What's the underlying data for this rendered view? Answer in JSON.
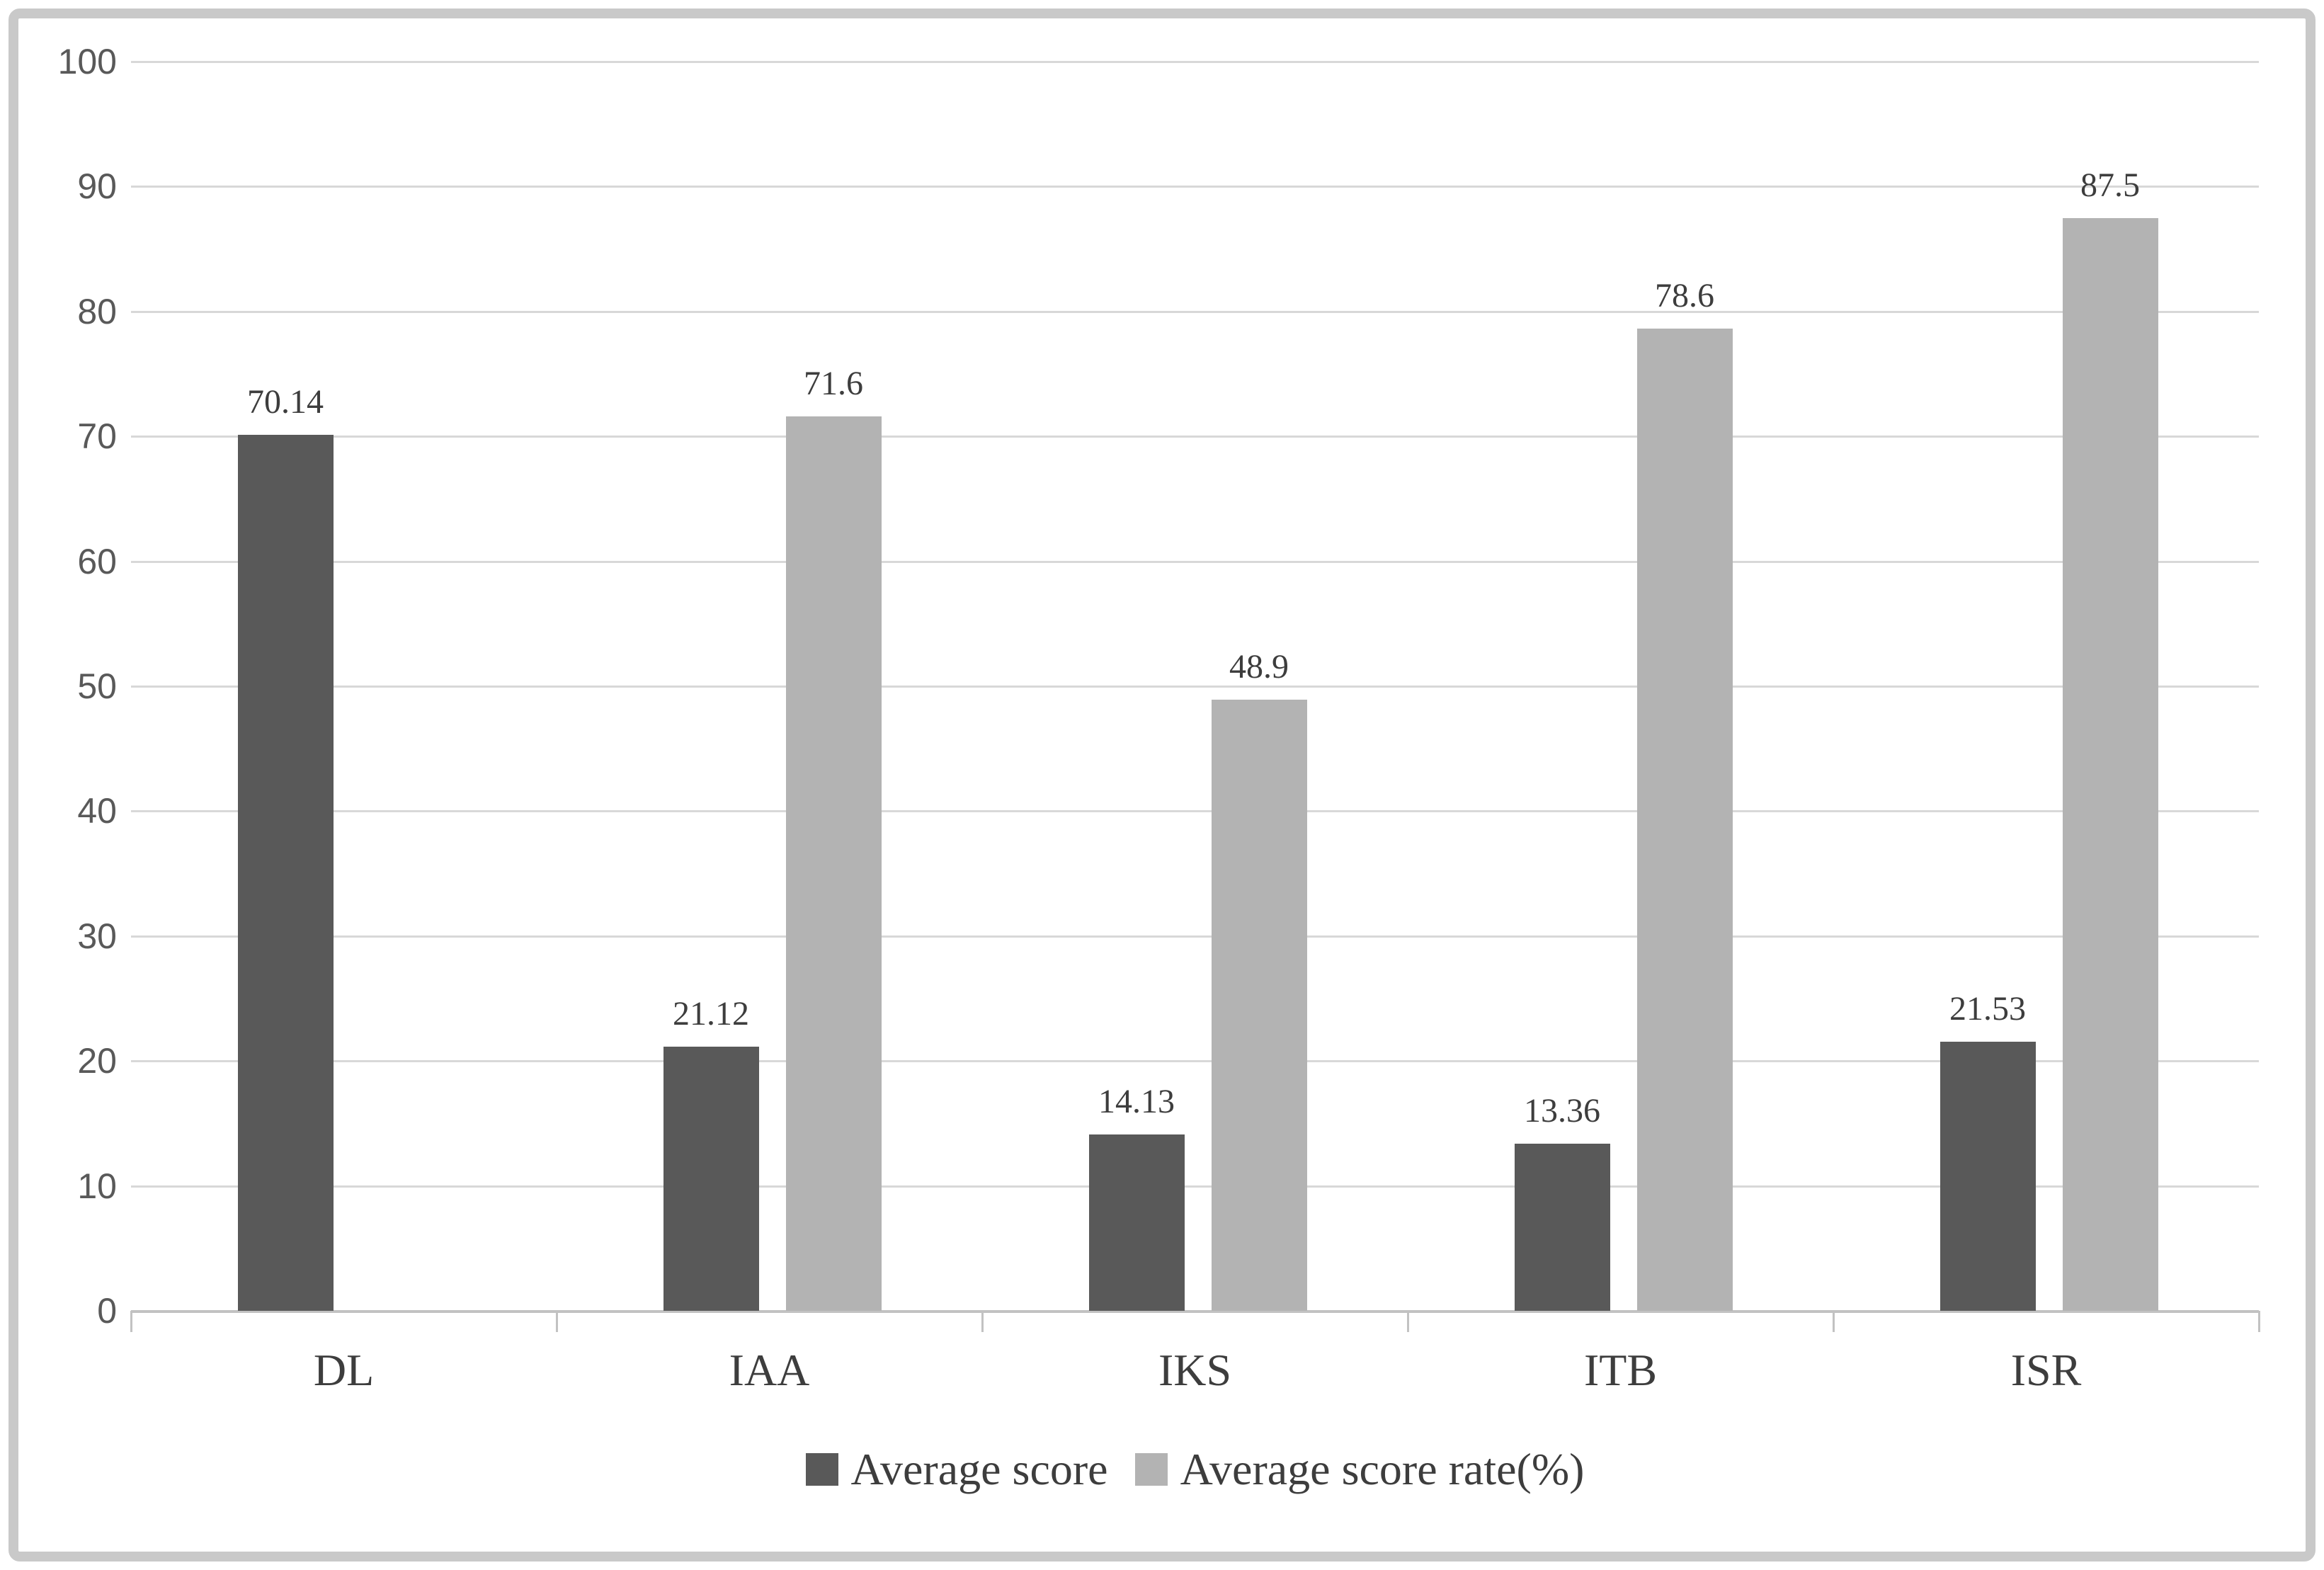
{
  "chart_data": {
    "type": "bar",
    "title": "",
    "xlabel": "",
    "ylabel": "",
    "categories": [
      "DL",
      "IAA",
      "IKS",
      "ITB",
      "ISR"
    ],
    "series": [
      {
        "name": "Average score",
        "color": "#595959",
        "values": [
          70.14,
          21.12,
          14.13,
          13.36,
          21.53
        ],
        "labels": [
          "70.14",
          "21.12",
          "14.13",
          "13.36",
          "21.53"
        ]
      },
      {
        "name": "Average score rate(%)",
        "color": "#b3b3b3",
        "values": [
          null,
          71.6,
          48.9,
          78.6,
          87.5
        ],
        "labels": [
          null,
          "71.6",
          "48.9",
          "78.6",
          "87.5"
        ]
      }
    ],
    "ylim": [
      0,
      100
    ],
    "yticks": [
      0,
      10,
      20,
      30,
      40,
      50,
      60,
      70,
      80,
      90,
      100
    ],
    "grid": true,
    "legend_position": "bottom"
  },
  "colors": {
    "series_dark": "#595959",
    "series_light": "#b3b3b3",
    "gridline": "#d8d8d8",
    "axis_line": "#c2c2c2",
    "y_tick_label": "#595959",
    "data_label": "#3d3d3d",
    "category_label": "#3d3d3d",
    "legend_label": "#3d3d3d",
    "frame_border": "#c9c9c9",
    "background": "#ffffff"
  }
}
